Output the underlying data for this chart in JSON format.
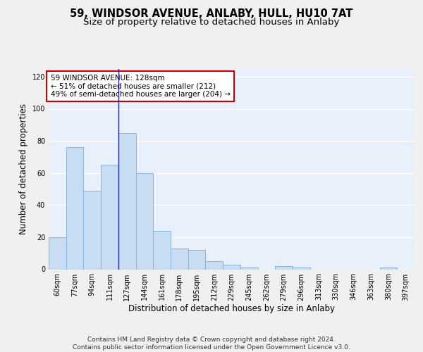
{
  "title1": "59, WINDSOR AVENUE, ANLABY, HULL, HU10 7AT",
  "title2": "Size of property relative to detached houses in Anlaby",
  "xlabel": "Distribution of detached houses by size in Anlaby",
  "ylabel": "Number of detached properties",
  "categories": [
    "60sqm",
    "77sqm",
    "94sqm",
    "111sqm",
    "127sqm",
    "144sqm",
    "161sqm",
    "178sqm",
    "195sqm",
    "212sqm",
    "229sqm",
    "245sqm",
    "262sqm",
    "279sqm",
    "296sqm",
    "313sqm",
    "330sqm",
    "346sqm",
    "363sqm",
    "380sqm",
    "397sqm"
  ],
  "values": [
    20,
    76,
    49,
    65,
    85,
    60,
    24,
    13,
    12,
    5,
    3,
    1,
    0,
    2,
    1,
    0,
    0,
    0,
    0,
    1,
    0
  ],
  "bar_color": "#c9ddf2",
  "bar_edge_color": "#8ab4d9",
  "highlight_bar_index": 4,
  "highlight_line_color": "#2222aa",
  "annotation_text": "59 WINDSOR AVENUE: 128sqm\n← 51% of detached houses are smaller (212)\n49% of semi-detached houses are larger (204) →",
  "annotation_box_color": "white",
  "annotation_box_edge_color": "#cc0000",
  "ylim": [
    0,
    125
  ],
  "yticks": [
    0,
    20,
    40,
    60,
    80,
    100,
    120
  ],
  "footer": "Contains HM Land Registry data © Crown copyright and database right 2024.\nContains public sector information licensed under the Open Government Licence v3.0.",
  "background_color": "#e8f0fb",
  "fig_background_color": "#f0f0f0",
  "grid_color": "#ffffff",
  "title1_fontsize": 10.5,
  "title2_fontsize": 9.5,
  "xlabel_fontsize": 8.5,
  "ylabel_fontsize": 8.5,
  "tick_fontsize": 7,
  "annotation_fontsize": 7.5,
  "footer_fontsize": 6.5
}
